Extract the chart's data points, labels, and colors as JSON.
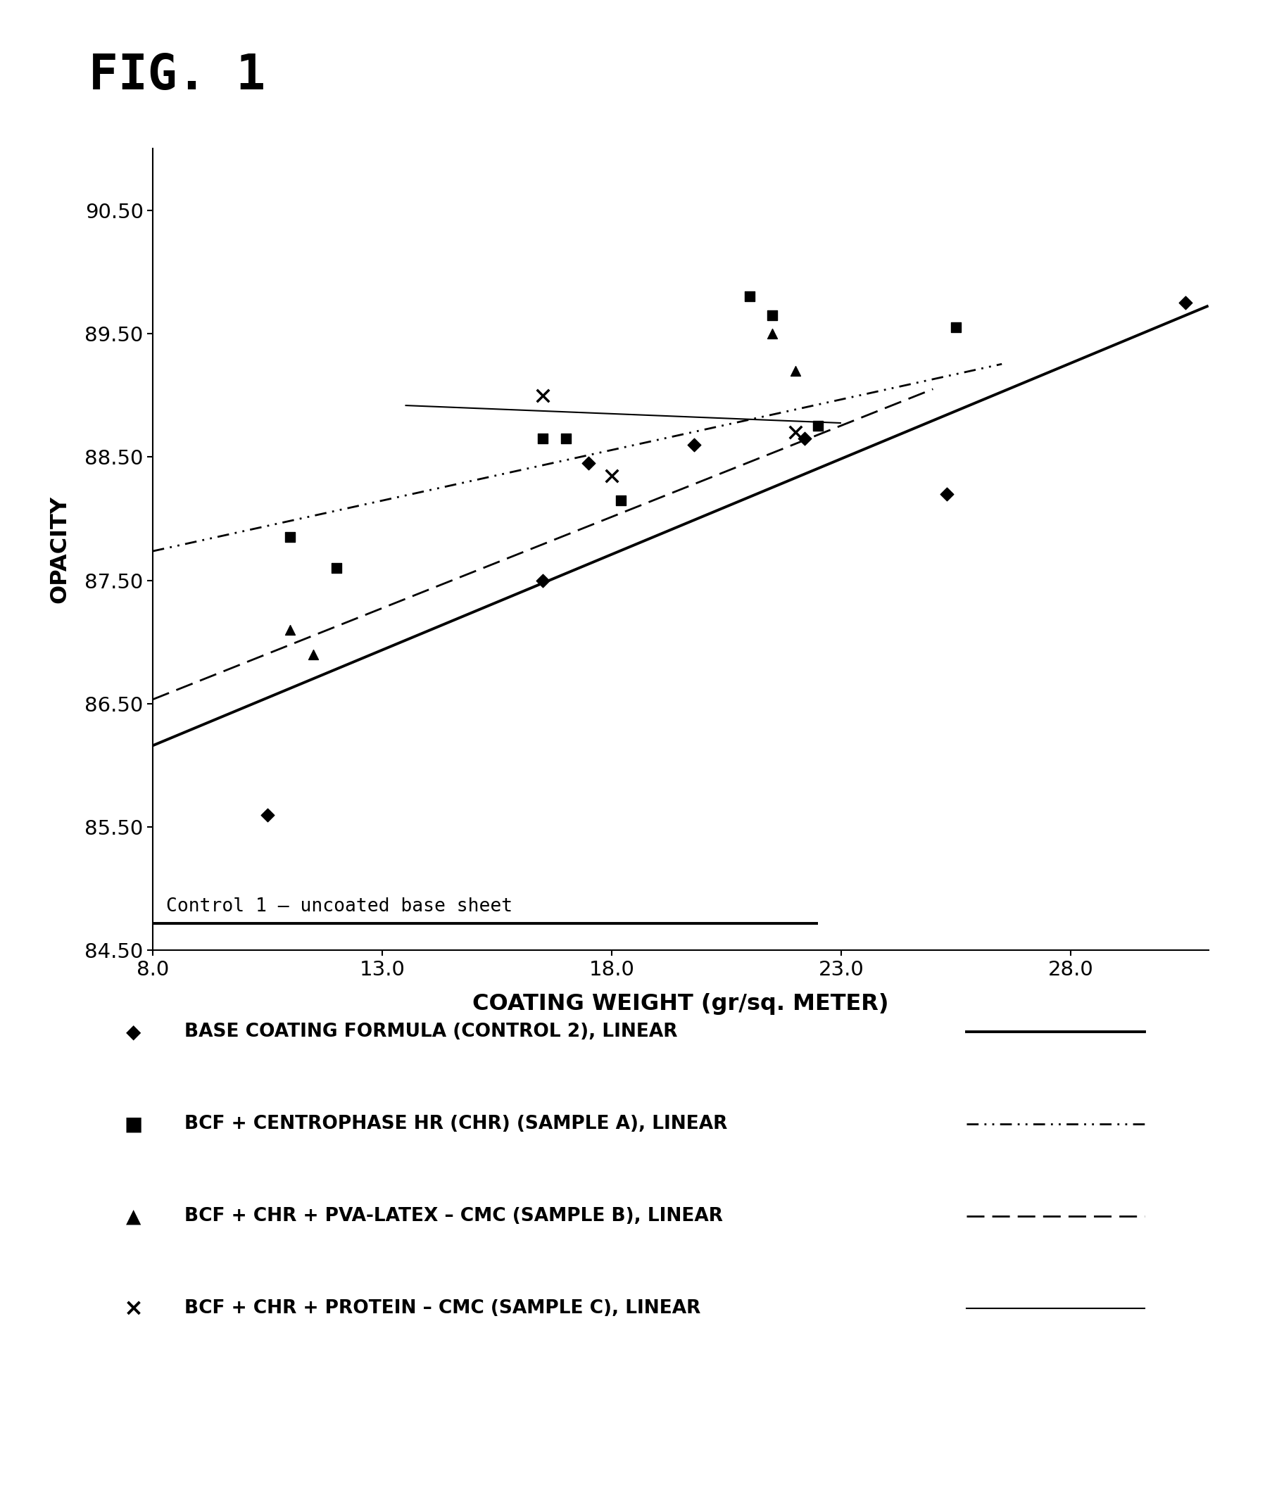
{
  "title": "FIG. 1",
  "xlabel": "COATING WEIGHT (gr/sq. METER)",
  "ylabel": "OPACITY",
  "xlim": [
    8.0,
    31.0
  ],
  "ylim": [
    84.5,
    91.0
  ],
  "xticks": [
    8.0,
    13.0,
    18.0,
    23.0,
    28.0
  ],
  "yticks": [
    84.5,
    85.5,
    86.5,
    87.5,
    88.5,
    89.5,
    90.5
  ],
  "control1_y": 84.72,
  "control1_x_end": 22.5,
  "control1_label": "Control 1 – uncoated base sheet",
  "series": [
    {
      "name": "BASE COATING FORMULA (CONTROL 2), LINEAR",
      "marker": "D",
      "x": [
        10.5,
        16.5,
        17.5,
        19.8,
        22.2,
        25.3,
        30.5
      ],
      "y": [
        85.6,
        87.5,
        88.45,
        88.6,
        88.65,
        88.2,
        89.75
      ]
    },
    {
      "name": "BCF + CENTROPHASE HR (CHR) (SAMPLE A), LINEAR",
      "marker": "s",
      "x": [
        11.0,
        12.0,
        16.5,
        17.0,
        18.2,
        21.0,
        21.5,
        22.5,
        25.5
      ],
      "y": [
        87.85,
        87.6,
        88.65,
        88.65,
        88.15,
        89.8,
        89.65,
        88.75,
        89.55
      ]
    },
    {
      "name": "BCF + CHR + PVA-LATEX – CMC (SAMPLE B), LINEAR",
      "marker": "^",
      "x": [
        11.0,
        11.5,
        21.5,
        22.0
      ],
      "y": [
        87.1,
        86.9,
        89.5,
        89.2
      ]
    },
    {
      "name": "BCF + CHR + PROTEIN – CMC (SAMPLE C), LINEAR",
      "marker": "x",
      "x": [
        16.5,
        18.0,
        22.0
      ],
      "y": [
        89.0,
        88.35,
        88.7
      ]
    }
  ],
  "trendlines": [
    {
      "x_start": 8.0,
      "x_end": 31.0,
      "slope": 0.155,
      "intercept": 84.92,
      "linestyle": "solid",
      "linewidth": 2.8
    },
    {
      "x_start": 8.0,
      "x_end": 26.5,
      "slope": 0.082,
      "intercept": 87.08,
      "linestyle": "dashdot3",
      "linewidth": 2.0
    },
    {
      "x_start": 8.0,
      "x_end": 25.0,
      "slope": 0.148,
      "intercept": 85.35,
      "linestyle": "dashed",
      "linewidth": 2.0
    },
    {
      "x_start": 13.5,
      "x_end": 23.0,
      "slope": -0.015,
      "intercept": 89.12,
      "linestyle": "solid",
      "linewidth": 1.5
    }
  ],
  "legend_labels": [
    "BASE COATING FORMULA (CONTROL 2), LINEAR",
    "BCF + CENTROPHASE HR (CHR) (SAMPLE A), LINEAR",
    "BCF + CHR + PVA-LATEX – CMC (SAMPLE B), LINEAR",
    "BCF + CHR + PROTEIN – CMC (SAMPLE C), LINEAR"
  ],
  "background_color": "#ffffff"
}
